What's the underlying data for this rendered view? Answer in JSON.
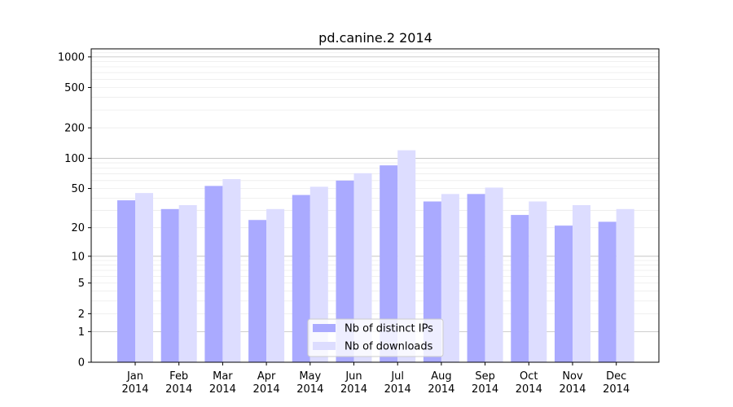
{
  "chart_data": {
    "type": "bar",
    "title": "pd.canine.2 2014",
    "xlabel": "",
    "ylabel": "",
    "categories": [
      "Jan\n2014",
      "Feb\n2014",
      "Mar\n2014",
      "Apr\n2014",
      "May\n2014",
      "Jun\n2014",
      "Jul\n2014",
      "Aug\n2014",
      "Sep\n2014",
      "Oct\n2014",
      "Nov\n2014",
      "Dec\n2014"
    ],
    "series": [
      {
        "name": "Nb of distinct IPs",
        "color": "#aaaaff",
        "values": [
          38,
          31,
          53,
          24,
          43,
          60,
          85,
          37,
          44,
          27,
          21,
          23
        ]
      },
      {
        "name": "Nb of downloads",
        "color": "#ddddff",
        "values": [
          45,
          34,
          62,
          31,
          52,
          71,
          120,
          44,
          51,
          37,
          34,
          31
        ]
      }
    ],
    "y_scale": "log(1+y)",
    "ylim": [
      0,
      1200
    ],
    "yticks": [
      {
        "value": 0,
        "label": "0"
      },
      {
        "value": 1,
        "label": "1"
      },
      {
        "value": 2,
        "label": "2"
      },
      {
        "value": 5,
        "label": "5"
      },
      {
        "value": 10,
        "label": "10"
      },
      {
        "value": 20,
        "label": "20"
      },
      {
        "value": 50,
        "label": "50"
      },
      {
        "value": 100,
        "label": "100"
      },
      {
        "value": 200,
        "label": "200"
      },
      {
        "value": 500,
        "label": "500"
      },
      {
        "value": 1000,
        "label": "1000"
      }
    ],
    "grid": true,
    "legend_position": "bottom-center"
  }
}
